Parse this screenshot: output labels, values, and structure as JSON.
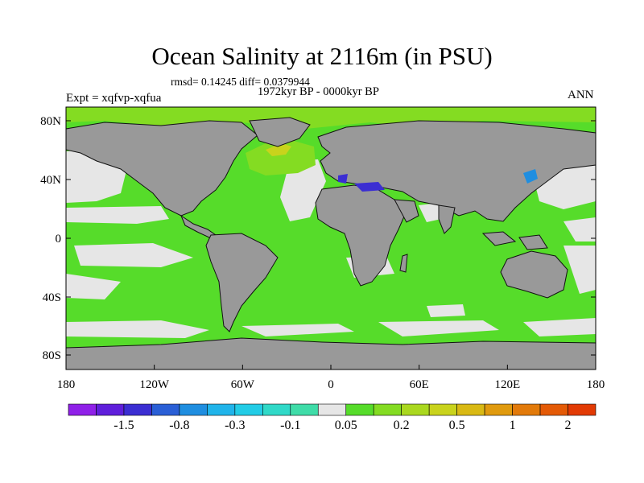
{
  "title": "Ocean Salinity at 2116m (in PSU)",
  "stats": "rmsd= 0.14245 diff= 0.0379944",
  "period": "1972kyr BP - 0000kyr BP",
  "experiment": "Expt = xqfvp-xqfua",
  "season": "ANN",
  "lat_ticks": [
    "80N",
    "40N",
    "0",
    "40S",
    "80S"
  ],
  "lon_ticks": [
    "180",
    "120W",
    "60W",
    "0",
    "60E",
    "120E",
    "180"
  ],
  "colorbar": {
    "colors": [
      "#8f20e8",
      "#5f1edb",
      "#3b2ed2",
      "#2a5fd6",
      "#1f8ee0",
      "#20b4ea",
      "#22cce6",
      "#30d9c8",
      "#3fdca8",
      "#e6e6e6",
      "#56dc2a",
      "#84dc22",
      "#aad81f",
      "#c9d31c",
      "#d9b914",
      "#e09a0e",
      "#e27a0a",
      "#e45a06",
      "#e23a04"
    ],
    "labels": [
      "-1.5",
      "-0.8",
      "-0.3",
      "-0.1",
      "0.05",
      "0.2",
      "0.5",
      "1",
      "2"
    ]
  },
  "fills": {
    "land": "#999999",
    "ocean": "#56dc2a",
    "near_zero": "#e6e6e6",
    "arctic": "#84dc22",
    "med": "#3b2ed2",
    "japan_sea": "#1f8ee0",
    "atlantic_high": "#c9d31c"
  }
}
